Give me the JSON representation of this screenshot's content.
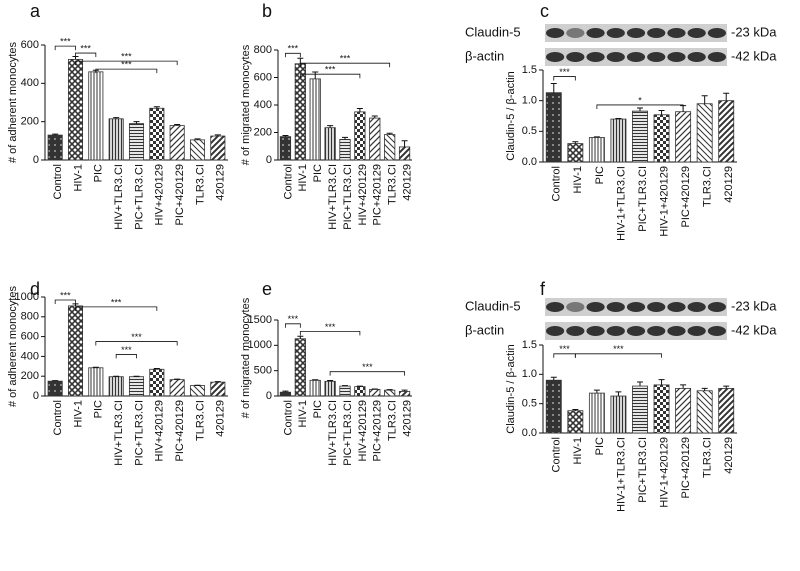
{
  "chart_data": [
    {
      "type": "bar",
      "panel_label": "a",
      "y_label": "# of adherent monocytes",
      "color": "#333333",
      "categories": [
        "Control",
        "HIV-1",
        "PIC",
        "HIV+TLR3.CI",
        "PIC+TLR3.CI",
        "HIV+420129",
        "PIC+420129",
        "TLR3.CI",
        "420129"
      ],
      "values": [
        130,
        525,
        460,
        215,
        190,
        270,
        180,
        105,
        125
      ],
      "errors": [
        5,
        15,
        8,
        6,
        10,
        8,
        5,
        5,
        6
      ],
      "ylim": [
        0,
        600
      ],
      "yticks": [
        0,
        200,
        400,
        600
      ],
      "annotations": [
        "***",
        "***",
        "***",
        "***"
      ]
    },
    {
      "type": "bar",
      "panel_label": "b",
      "y_label": "# of migrated monocytes",
      "color": "#333333",
      "categories": [
        "Control",
        "HIV-1",
        "PIC",
        "HIV+TLR3.CI",
        "PIC+TLR3.CI",
        "HIV+420129",
        "PIC+420129",
        "TLR3.CI",
        "420129"
      ],
      "values": [
        170,
        700,
        590,
        235,
        150,
        350,
        305,
        185,
        95
      ],
      "errors": [
        8,
        40,
        50,
        15,
        15,
        25,
        15,
        10,
        45
      ],
      "ylim": [
        0,
        800
      ],
      "yticks": [
        0,
        200,
        400,
        600,
        800
      ],
      "annotations": [
        "***",
        "***",
        "***"
      ]
    },
    {
      "type": "bar",
      "panel_label": "c",
      "y_label": "Claudin-5 / β-actin",
      "color": "#333333",
      "blot": [
        {
          "label": "Claudin-5",
          "size": "-23 kDa"
        },
        {
          "label": "β-actin",
          "size": "-42 kDa"
        }
      ],
      "categories": [
        "Control",
        "HIV-1",
        "PIC",
        "HIV-1+TLR3.CI",
        "PIC+TLR3.CI",
        "HIV-1+420129",
        "PIC+420129",
        "TLR3.CI",
        "420129"
      ],
      "values": [
        1.13,
        0.3,
        0.4,
        0.7,
        0.83,
        0.77,
        0.82,
        0.95,
        1.0
      ],
      "errors": [
        0.15,
        0.03,
        0.01,
        0.01,
        0.05,
        0.07,
        0.1,
        0.13,
        0.12
      ],
      "ylim": [
        0,
        1.5
      ],
      "yticks": [
        {
          "value": 0,
          "label": "0.0"
        },
        0.5,
        {
          "value": 1,
          "label": "1.0"
        },
        1.5
      ],
      "annotations": [
        "***",
        "*"
      ]
    },
    {
      "type": "bar",
      "panel_label": "d",
      "y_label": "# of adherent monocytes",
      "color": "#333333",
      "categories": [
        "Control",
        "HIV-1",
        "PIC",
        "HIV+TLR3.CI",
        "PIC+TLR3.CI",
        "HIV+420129",
        "PIC+420129",
        "TLR3.CI",
        "420129"
      ],
      "values": [
        150,
        910,
        285,
        195,
        195,
        270,
        165,
        105,
        140
      ],
      "errors": [
        5,
        20,
        6,
        4,
        4,
        8,
        6,
        4,
        5
      ],
      "ylim": [
        0,
        1000
      ],
      "yticks": [
        0,
        200,
        400,
        600,
        800,
        1000
      ],
      "annotations": [
        "***",
        "***",
        "***",
        "***"
      ]
    },
    {
      "type": "bar",
      "panel_label": "e",
      "y_label": "# of migrated monocytes",
      "color": "#333333",
      "categories": [
        "Control",
        "HIV-1",
        "PIC",
        "HIV+TLR3.CI",
        "PIC+TLR3.CI",
        "HIV+420129",
        "PIC+420129",
        "TLR3.CI",
        "420129"
      ],
      "values": [
        75,
        1130,
        310,
        290,
        195,
        185,
        130,
        115,
        90
      ],
      "errors": [
        20,
        50,
        10,
        15,
        10,
        10,
        8,
        10,
        25
      ],
      "ylim": [
        0,
        1500
      ],
      "yticks": [
        0,
        500,
        1000,
        1500
      ],
      "annotations": [
        "***",
        "***",
        "***"
      ]
    },
    {
      "type": "bar",
      "panel_label": "f",
      "y_label": "Claudin-5 / β-actin",
      "color": "#333333",
      "blot": [
        {
          "label": "Claudin-5",
          "size": "-23 kDa"
        },
        {
          "label": "β-actin",
          "size": "-42 kDa"
        }
      ],
      "categories": [
        "Control",
        "HIV-1",
        "PIC",
        "HIV-1+TLR3.CI",
        "PIC+TLR3.CI",
        "HIV-1+420129",
        "PIC+420129",
        "TLR3.CI",
        "420129"
      ],
      "values": [
        0.9,
        0.38,
        0.68,
        0.63,
        0.8,
        0.82,
        0.76,
        0.72,
        0.76
      ],
      "errors": [
        0.05,
        0.02,
        0.05,
        0.07,
        0.07,
        0.09,
        0.06,
        0.04,
        0.04
      ],
      "ylim": [
        0,
        1.5
      ],
      "yticks": [
        {
          "value": 0,
          "label": "0.0"
        },
        0.5,
        {
          "value": 1,
          "label": "1.0"
        },
        1.5
      ],
      "annotations": [
        "***",
        "***"
      ]
    }
  ]
}
